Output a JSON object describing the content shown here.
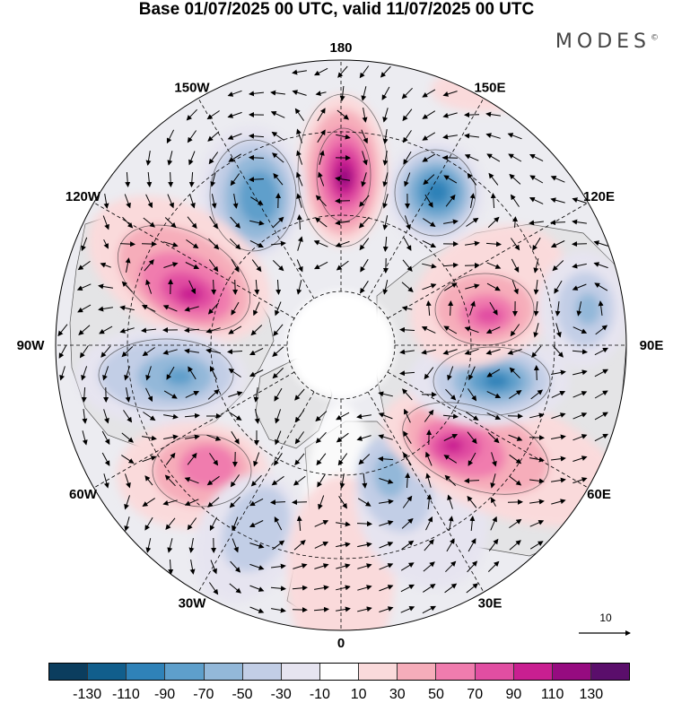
{
  "title": "Base 01/07/2025 00 UTC, valid 11/07/2025 00 UTC",
  "logo": {
    "text": "MODES",
    "mark": "©"
  },
  "longitude_labels": [
    {
      "text": "180",
      "lon": 180
    },
    {
      "text": "150E",
      "lon": 150
    },
    {
      "text": "120E",
      "lon": 120
    },
    {
      "text": "90E",
      "lon": 90
    },
    {
      "text": "60E",
      "lon": 60
    },
    {
      "text": "30E",
      "lon": 30
    },
    {
      "text": "0",
      "lon": 0
    },
    {
      "text": "30W",
      "lon": -30
    },
    {
      "text": "60W",
      "lon": -60
    },
    {
      "text": "90W",
      "lon": -90
    },
    {
      "text": "120W",
      "lon": -120
    },
    {
      "text": "150W",
      "lon": -150
    }
  ],
  "vector_scale": {
    "label": "10"
  },
  "colorbar": {
    "colors": [
      "#0b3d5e",
      "#115e8c",
      "#2f82b8",
      "#5e9fcb",
      "#93b8d9",
      "#c2cee6",
      "#e6e4f0",
      "#ffffff",
      "#fadadb",
      "#f6adba",
      "#f07cae",
      "#e14ea2",
      "#c91f91",
      "#960b80",
      "#5a0e6b"
    ],
    "tick_labels": [
      "-130",
      "-110",
      "-90",
      "-70",
      "-50",
      "-30",
      "-10",
      "10",
      "30",
      "50",
      "70",
      "90",
      "110",
      "130"
    ]
  }
}
